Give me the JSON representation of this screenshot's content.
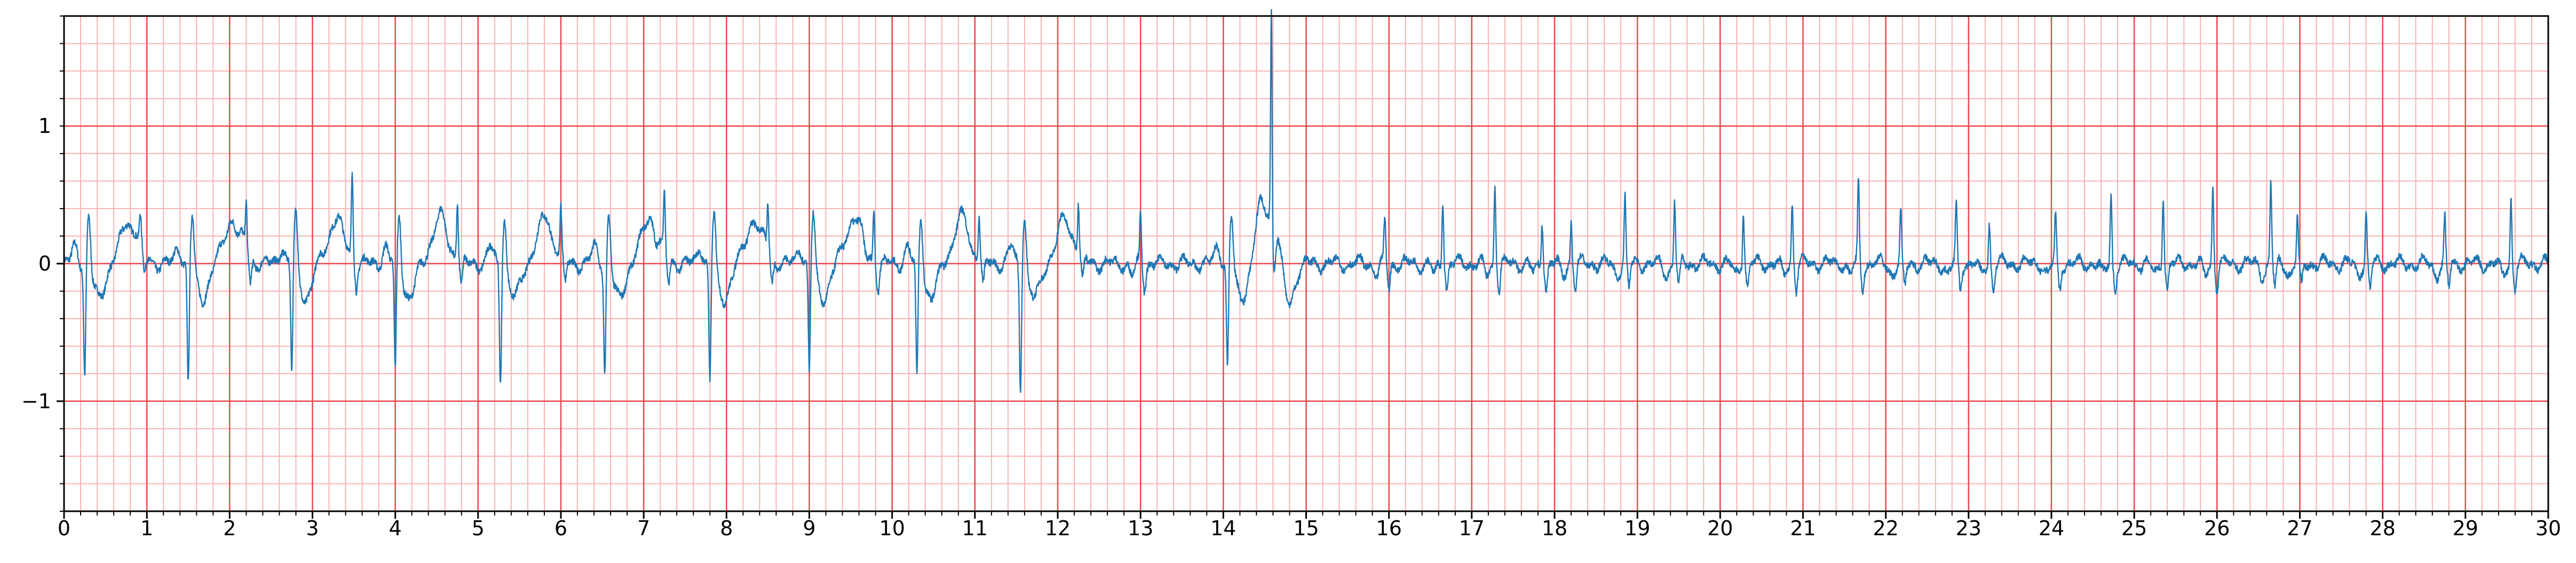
{
  "chart_data": {
    "type": "line",
    "title": "",
    "xlabel": "",
    "ylabel": "",
    "xlim": [
      0,
      30
    ],
    "ylim": [
      -1.8,
      1.8
    ],
    "grid": {
      "major_x_step": 1,
      "minor_x_step": 0.2,
      "major_y_step": 1,
      "minor_y_step": 0.2,
      "major_color": "#e8474b",
      "minor_color": "#f7b4b4"
    },
    "x_tick_labels": [
      "0",
      "1",
      "2",
      "3",
      "4",
      "5",
      "6",
      "7",
      "8",
      "9",
      "10",
      "11",
      "12",
      "13",
      "14",
      "15",
      "16",
      "17",
      "18",
      "19",
      "20",
      "21",
      "22",
      "23",
      "24",
      "25",
      "26",
      "27",
      "28",
      "29",
      "30"
    ],
    "y_ticks": [
      {
        "value": 1,
        "label": "1"
      },
      {
        "value": 0,
        "label": "0"
      },
      {
        "value": -1,
        "label": "−1"
      }
    ],
    "series": [
      {
        "color": "#1f77b4",
        "beat_times": [
          0.25,
          1.5,
          2.75,
          4.0,
          5.27,
          6.53,
          7.8,
          9.0,
          10.3,
          11.55,
          14.05,
          14.58
        ],
        "beat_depths": [
          -0.8,
          -0.88,
          -0.78,
          -0.8,
          -0.85,
          -0.8,
          -0.87,
          -0.78,
          -0.85,
          -0.9,
          -0.75,
          1.6
        ],
        "spike_times": [
          0.92,
          2.2,
          3.48,
          4.75,
          6.0,
          7.25,
          8.5,
          9.78,
          11.05,
          12.25,
          13.0,
          15.95,
          16.65,
          17.28,
          17.85,
          18.2,
          18.85,
          19.45,
          20.28,
          20.87,
          21.67,
          22.18,
          22.85,
          23.25,
          24.05,
          24.72,
          25.35,
          25.95,
          26.65,
          26.97,
          27.8,
          28.75,
          29.55
        ],
        "spike_heights": [
          0.18,
          0.33,
          0.58,
          0.43,
          0.33,
          0.42,
          0.33,
          0.38,
          0.32,
          0.35,
          0.35,
          0.33,
          0.47,
          0.6,
          0.33,
          0.3,
          0.48,
          0.48,
          0.4,
          0.46,
          0.58,
          0.37,
          0.42,
          0.3,
          0.35,
          0.52,
          0.52,
          0.56,
          0.6,
          0.34,
          0.38,
          0.32,
          0.47
        ]
      }
    ]
  }
}
